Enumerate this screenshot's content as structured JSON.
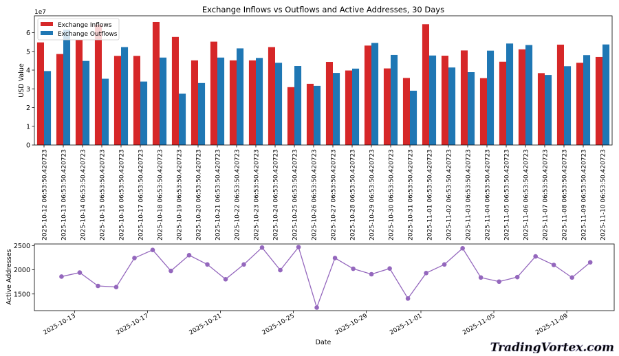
{
  "chart_data": [
    {
      "type": "bar",
      "title": "Exchange Inflows vs Outflows and Active Addresses, 30 Days",
      "xlabel": "",
      "ylabel": "USD Value",
      "y_offset_label": "1e7",
      "ylim": [
        0,
        69000000
      ],
      "yticks": [
        0,
        1,
        2,
        3,
        4,
        5,
        6
      ],
      "grid": false,
      "legend": "top-left",
      "categories": [
        "2025-10-12 06:53:50.420723",
        "2025-10-13 06:53:50.420723",
        "2025-10-14 06:53:50.420723",
        "2025-10-15 06:53:50.420723",
        "2025-10-16 06:53:50.420723",
        "2025-10-17 06:53:50.420723",
        "2025-10-18 06:53:50.420723",
        "2025-10-19 06:53:50.420723",
        "2025-10-20 06:53:50.420723",
        "2025-10-21 06:53:50.420723",
        "2025-10-22 06:53:50.420723",
        "2025-10-23 06:53:50.420723",
        "2025-10-24 06:53:50.420723",
        "2025-10-25 06:53:50.420723",
        "2025-10-26 06:53:50.420723",
        "2025-10-27 06:53:50.420723",
        "2025-10-28 06:53:50.420723",
        "2025-10-29 06:53:50.420723",
        "2025-10-30 06:53:50.420723",
        "2025-10-31 06:53:50.420723",
        "2025-11-01 06:53:50.420723",
        "2025-11-02 06:53:50.420723",
        "2025-11-03 06:53:50.420723",
        "2025-11-04 06:53:50.420723",
        "2025-11-05 06:53:50.420723",
        "2025-11-06 06:53:50.420723",
        "2025-11-07 06:53:50.420723",
        "2025-11-08 06:53:50.420723",
        "2025-11-09 06:53:50.420723",
        "2025-11-10 06:53:50.420723"
      ],
      "series": [
        {
          "name": "Exchange Inflows",
          "color": "#d62728",
          "values": [
            54800000,
            48600000,
            56300000,
            64200000,
            47600000,
            47600000,
            65700000,
            57700000,
            45200000,
            55200000,
            45200000,
            45200000,
            52300000,
            30900000,
            32700000,
            44400000,
            39800000,
            53100000,
            40900000,
            35800000,
            64500000,
            47700000,
            50500000,
            35700000,
            44500000,
            51100000,
            38400000,
            53600000,
            43900000,
            47000000
          ]
        },
        {
          "name": "Exchange Outflows",
          "color": "#1f77b4",
          "values": [
            39500000,
            61600000,
            44900000,
            35400000,
            52300000,
            33900000,
            46700000,
            27400000,
            33100000,
            46700000,
            51600000,
            46500000,
            43900000,
            42200000,
            31600000,
            38500000,
            40800000,
            54500000,
            48100000,
            29000000,
            47800000,
            41400000,
            38900000,
            50400000,
            54200000,
            53400000,
            37400000,
            42100000,
            48000000,
            53700000
          ]
        }
      ]
    },
    {
      "type": "line",
      "title": "",
      "xlabel": "Date",
      "ylabel": "Active Addresses",
      "ylim": [
        1155,
        2535
      ],
      "yticks": [
        1500,
        2000,
        2500
      ],
      "xticks": [
        "2025-10-13",
        "2025-10-17",
        "2025-10-21",
        "2025-10-25",
        "2025-10-29",
        "2025-11-01",
        "2025-11-05",
        "2025-11-09"
      ],
      "grid": false,
      "series": [
        {
          "color": "#9467bd",
          "marker": "circle",
          "x": [
            "2025-10-12",
            "2025-10-13",
            "2025-10-14",
            "2025-10-15",
            "2025-10-16",
            "2025-10-17",
            "2025-10-18",
            "2025-10-19",
            "2025-10-20",
            "2025-10-21",
            "2025-10-22",
            "2025-10-23",
            "2025-10-24",
            "2025-10-25",
            "2025-10-26",
            "2025-10-27",
            "2025-10-28",
            "2025-10-29",
            "2025-10-30",
            "2025-10-31",
            "2025-11-01",
            "2025-11-02",
            "2025-11-03",
            "2025-11-04",
            "2025-11-05",
            "2025-11-06",
            "2025-11-07",
            "2025-11-08",
            "2025-11-09",
            "2025-11-10"
          ],
          "values": [
            1860,
            1943,
            1667,
            1643,
            2244,
            2411,
            1978,
            2303,
            2111,
            1805,
            2111,
            2461,
            1993,
            2470,
            1219,
            2244,
            2022,
            1909,
            2027,
            1406,
            1933,
            2111,
            2446,
            1840,
            1756,
            1850,
            2278,
            2101,
            1840,
            2155
          ]
        }
      ]
    }
  ],
  "watermark": "TradingVortex.com"
}
